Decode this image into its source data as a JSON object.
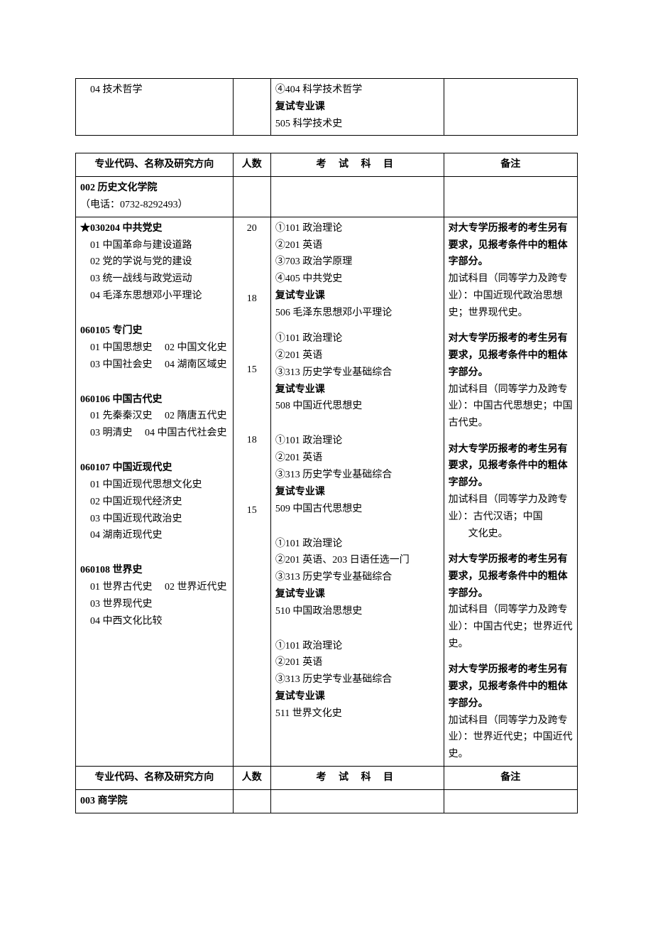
{
  "headers": {
    "major": "专业代码、名称及研究方向",
    "count": "人数",
    "subjects": "考 试 科 目",
    "notes": "备注"
  },
  "table1": {
    "row": {
      "major": "04 技术哲学",
      "subjects_l1": "④404 科学技术哲学",
      "subjects_l2": "复试专业课",
      "subjects_l3": "505 科学技术史"
    }
  },
  "table2": {
    "dept": {
      "name": "002 历史文化学院",
      "phone": "（电话：0732-8292493）"
    },
    "p1": {
      "code": "★030204 中共党史",
      "count": "20",
      "d1": "01 中国革命与建设道路",
      "d2": "02 党的学说与党的建设",
      "d3": "03 统一战线与政党运动",
      "d4": "04 毛泽东思想邓小平理论",
      "s1": "①101 政治理论",
      "s2": "②201 英语",
      "s3": "③703 政治学原理",
      "s4": "④405 中共党史",
      "s5": "复试专业课",
      "s6": "506 毛泽东思想邓小平理论",
      "n1": "对大专学历报考的考生另有要求，见报考条件中的粗体字部分。",
      "n2": "加试科目（同等学力及跨专业）：中国近现代政治思想史；世界现代史。"
    },
    "p2": {
      "code": "060105 专门史",
      "count": "18",
      "d1": "01 中国思想史",
      "d2": "02 中国文化史",
      "d3": "03 中国社会史",
      "d4": "04 湖南区域史",
      "s1": "①101 政治理论",
      "s2": "②201 英语",
      "s3": "③313 历史学专业基础综合",
      "s4": "复试专业课",
      "s5": "508 中国近代思想史",
      "n1": "对大专学历报考的考生另有要求，见报考条件中的粗体字部分。",
      "n2": "加试科目（同等学力及跨专业）：中国古代思想史；中国古代史。"
    },
    "p3": {
      "code": "060106 中国古代史",
      "count": "15",
      "d1": "01 先秦秦汉史",
      "d2": "02 隋唐五代史",
      "d3": "03 明清史",
      "d4": "04 中国古代社会史",
      "s1": "①101 政治理论",
      "s2": "②201 英语",
      "s3": "③313 历史学专业基础综合",
      "s4": "复试专业课",
      "s5": "509 中国古代思想史",
      "n1": "对大专学历报考的考生另有要求，见报考条件中的粗体字部分。",
      "n2a": "加试科目（同等学力及跨专业）：古代汉语；中国",
      "n2b": "文化史。"
    },
    "p4": {
      "code": "060107 中国近现代史",
      "count": "18",
      "d1": "01 中国近现代思想文化史",
      "d2": "02 中国近现代经济史",
      "d3": "03 中国近现代政治史",
      "d4": "04 湖南近现代史",
      "s1": "①101 政治理论",
      "s2": "②201 英语、203 日语任选一门",
      "s3": "③313 历史学专业基础综合",
      "s4": "复试专业课",
      "s5": "510 中国政治思想史",
      "n1": "对大专学历报考的考生另有要求，见报考条件中的粗体字部分。",
      "n2": "加试科目（同等学力及跨专业）：中国古代史；世界近代史。"
    },
    "p5": {
      "code": "060108 世界史",
      "count": "15",
      "d1": "01 世界古代史",
      "d2": "02 世界近代史",
      "d3": "03 世界现代史",
      "d4": "04 中西文化比较",
      "s1": "①101 政治理论",
      "s2": "②201 英语",
      "s3": "③313 历史学专业基础综合",
      "s4": "复试专业课",
      "s5": "511 世界文化史",
      "n1": "对大专学历报考的考生另有要求，见报考条件中的粗体字部分。",
      "n2": "加试科目（同等学力及跨专业）：世界近代史；中国近代史。"
    },
    "dept2": {
      "name": "003 商学院"
    }
  }
}
